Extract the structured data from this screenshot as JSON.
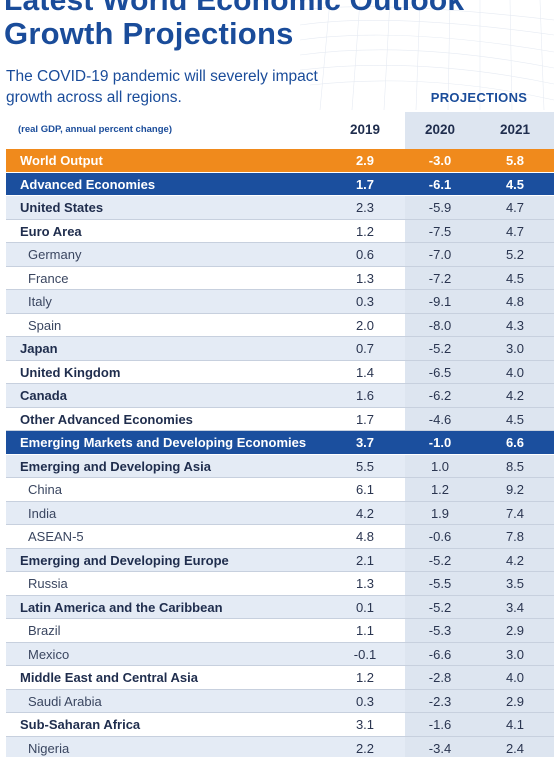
{
  "header": {
    "title_line1": "Latest World Economic Outlook",
    "title_line2": "Growth Projections",
    "subtitle": "The COVID-19 pandemic will severely impact growth across all regions.",
    "projections_label": "PROJECTIONS",
    "unit_note": "(real GDP, annual percent change)"
  },
  "colors": {
    "title": "#1a4c9a",
    "world_row": "#f08a1c",
    "group_row": "#1b4f9e",
    "projection_column": "#dde5f0",
    "shaded_row": "#e4ebf5"
  },
  "chart_data": {
    "type": "table",
    "title": "Growth Projections",
    "columns": [
      "2019",
      "2020",
      "2021"
    ],
    "rows": [
      {
        "name": "World Output",
        "style": "world",
        "values": [
          "2.9",
          "-3.0",
          "5.8"
        ]
      },
      {
        "name": "Advanced Economies",
        "style": "group",
        "values": [
          "1.7",
          "-6.1",
          "4.5"
        ]
      },
      {
        "name": "United States",
        "style": "bold-shade",
        "values": [
          "2.3",
          "-5.9",
          "4.7"
        ]
      },
      {
        "name": "Euro Area",
        "style": "bold",
        "values": [
          "1.2",
          "-7.5",
          "4.7"
        ]
      },
      {
        "name": "Germany",
        "style": "sub-shade",
        "values": [
          "0.6",
          "-7.0",
          "5.2"
        ]
      },
      {
        "name": "France",
        "style": "sub",
        "values": [
          "1.3",
          "-7.2",
          "4.5"
        ]
      },
      {
        "name": "Italy",
        "style": "sub-shade",
        "values": [
          "0.3",
          "-9.1",
          "4.8"
        ]
      },
      {
        "name": "Spain",
        "style": "sub",
        "values": [
          "2.0",
          "-8.0",
          "4.3"
        ]
      },
      {
        "name": "Japan",
        "style": "bold-shade",
        "values": [
          "0.7",
          "-5.2",
          "3.0"
        ]
      },
      {
        "name": "United Kingdom",
        "style": "bold",
        "values": [
          "1.4",
          "-6.5",
          "4.0"
        ]
      },
      {
        "name": "Canada",
        "style": "bold-shade",
        "values": [
          "1.6",
          "-6.2",
          "4.2"
        ]
      },
      {
        "name": "Other Advanced Economies",
        "style": "bold",
        "values": [
          "1.7",
          "-4.6",
          "4.5"
        ]
      },
      {
        "name": "Emerging Markets and Developing Economies",
        "style": "group",
        "values": [
          "3.7",
          "-1.0",
          "6.6"
        ]
      },
      {
        "name": "Emerging and Developing Asia",
        "style": "bold-shade",
        "values": [
          "5.5",
          "1.0",
          "8.5"
        ]
      },
      {
        "name": "China",
        "style": "sub",
        "values": [
          "6.1",
          "1.2",
          "9.2"
        ]
      },
      {
        "name": "India",
        "style": "sub-shade",
        "values": [
          "4.2",
          "1.9",
          "7.4"
        ]
      },
      {
        "name": "ASEAN-5",
        "style": "sub",
        "values": [
          "4.8",
          "-0.6",
          "7.8"
        ]
      },
      {
        "name": "Emerging and Developing Europe",
        "style": "bold-shade",
        "values": [
          "2.1",
          "-5.2",
          "4.2"
        ]
      },
      {
        "name": "Russia",
        "style": "sub",
        "values": [
          "1.3",
          "-5.5",
          "3.5"
        ]
      },
      {
        "name": "Latin America and the Caribbean",
        "style": "bold-shade",
        "values": [
          "0.1",
          "-5.2",
          "3.4"
        ]
      },
      {
        "name": "Brazil",
        "style": "sub",
        "values": [
          "1.1",
          "-5.3",
          "2.9"
        ]
      },
      {
        "name": "Mexico",
        "style": "sub-shade",
        "values": [
          "-0.1",
          "-6.6",
          "3.0"
        ]
      },
      {
        "name": "Middle East and Central Asia",
        "style": "bold",
        "values": [
          "1.2",
          "-2.8",
          "4.0"
        ]
      },
      {
        "name": "Saudi Arabia",
        "style": "sub-shade",
        "values": [
          "0.3",
          "-2.3",
          "2.9"
        ]
      },
      {
        "name": "Sub-Saharan Africa",
        "style": "bold",
        "values": [
          "3.1",
          "-1.6",
          "4.1"
        ]
      },
      {
        "name": "Nigeria",
        "style": "sub-shade",
        "values": [
          "2.2",
          "-3.4",
          "2.4"
        ]
      }
    ]
  }
}
